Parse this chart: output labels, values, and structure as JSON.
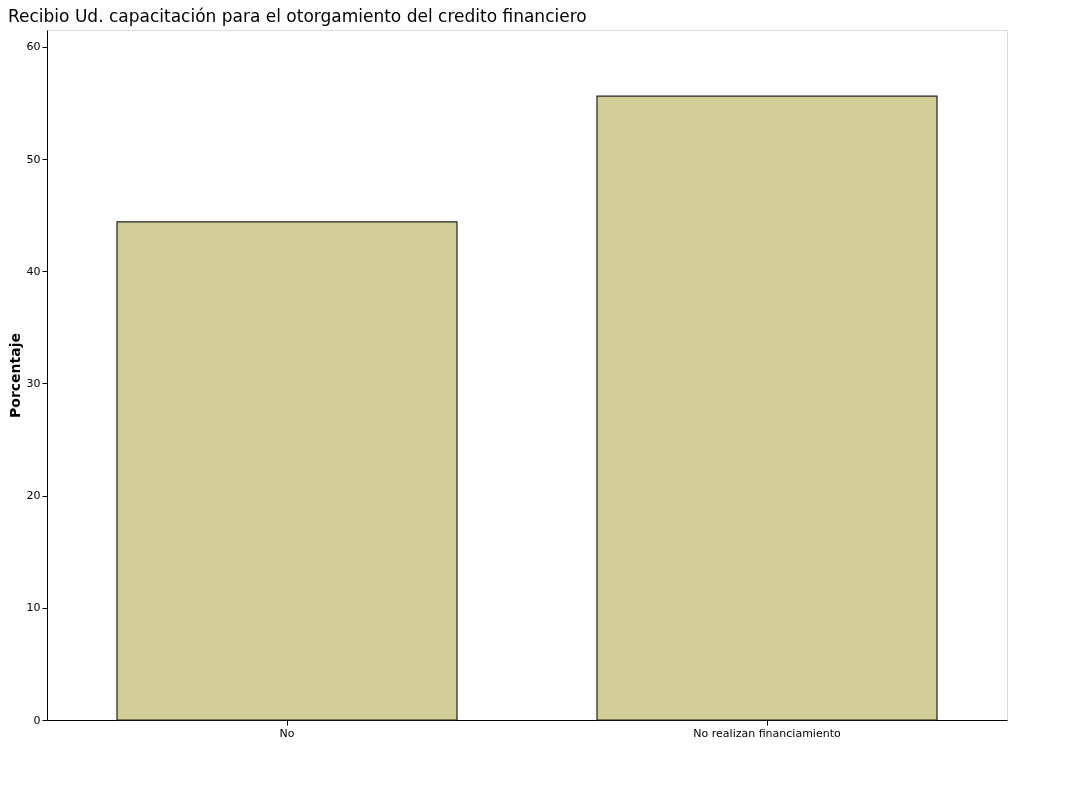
{
  "chart_data": {
    "type": "bar",
    "title": "Recibio Ud. capacitación para el otorgamiento del credito financiero",
    "ylabel": "Porcentaje",
    "categories": [
      "No",
      "No realizan financiamiento"
    ],
    "values": [
      44.4,
      55.6
    ],
    "color": "#d3ce97",
    "ylim": [
      0,
      61.5
    ],
    "yticks": [
      0,
      10,
      20,
      30,
      40,
      50,
      60
    ],
    "grid": false
  }
}
